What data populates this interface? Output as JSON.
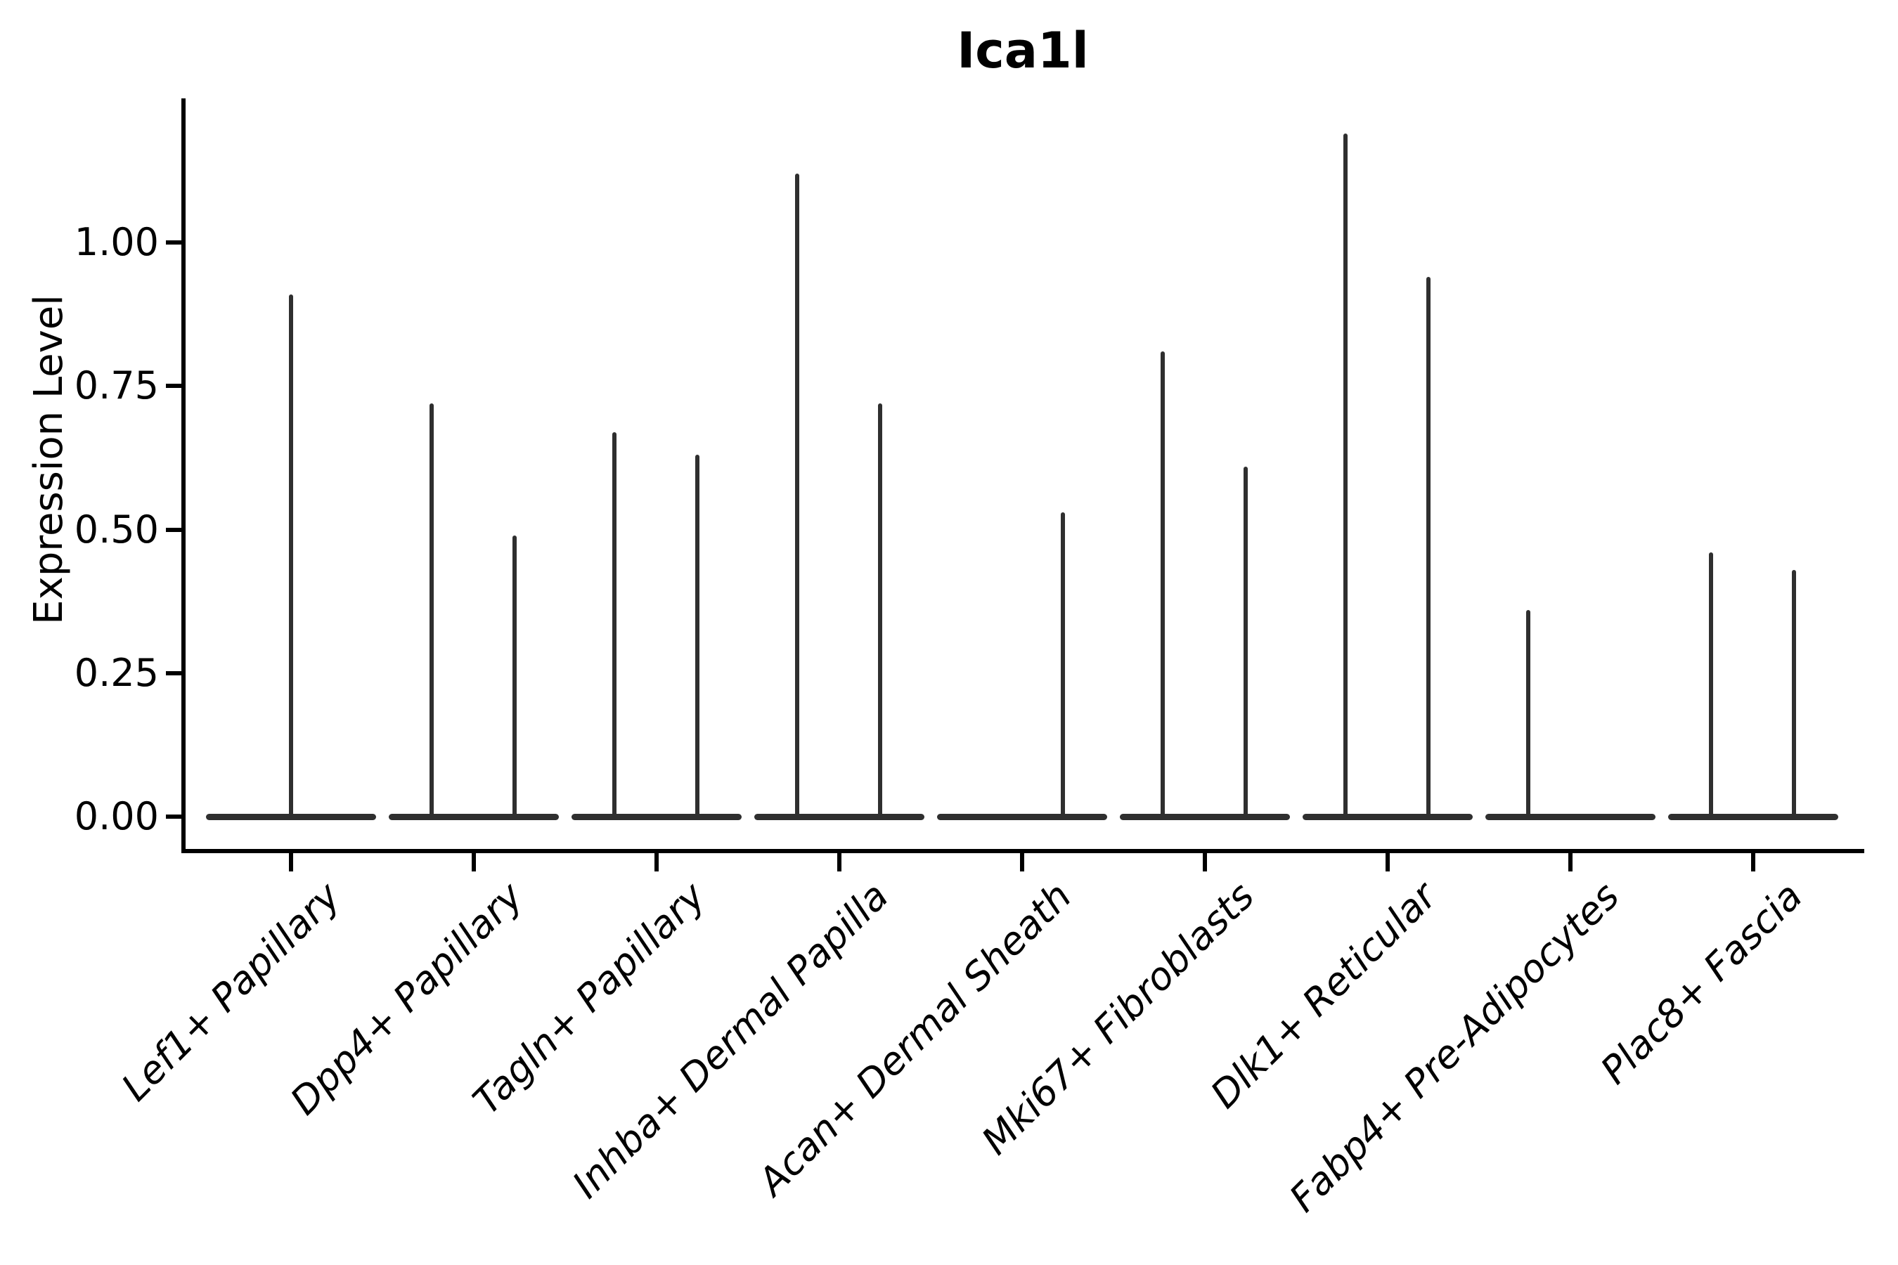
{
  "title": "Ica1l",
  "axes": {
    "ylabel": "Expression Level",
    "ytick_labels": [
      "0.00",
      "0.25",
      "0.50",
      "0.75",
      "1.00"
    ]
  },
  "chart_data": {
    "type": "violin",
    "title": "Ica1l",
    "xlabel": "",
    "ylabel": "Expression Level",
    "ylim": [
      0,
      1.25
    ],
    "yticks": [
      0,
      0.25,
      0.5,
      0.75,
      1.0
    ],
    "ytick_labels": [
      "0.00",
      "0.25",
      "0.50",
      "0.75",
      "1.00"
    ],
    "grid": false,
    "legend": "none",
    "categories": [
      "Lef1+ Papillary",
      "Dpp4+ Papillary",
      "Tagln+ Papillary",
      "Inhba+ Dermal Papilla",
      "Acan+ Dermal Sheath",
      "Mki67+ Fibroblasts",
      "Dlk1+ Reticular",
      "Fabp4+ Pre-Adipocytes",
      "Plac8+ Fascia"
    ],
    "description": "Each category shows violin(s) collapsed to a flat base at expression 0 with thin spikes reaching the maximum expression value.",
    "baseline_value": 0,
    "violins": [
      {
        "category": "Lef1+ Papillary",
        "spikes": [
          {
            "side": "center",
            "max": 0.91
          }
        ]
      },
      {
        "category": "Dpp4+ Papillary",
        "spikes": [
          {
            "side": "left",
            "max": 0.72
          },
          {
            "side": "right",
            "max": 0.49
          }
        ]
      },
      {
        "category": "Tagln+ Papillary",
        "spikes": [
          {
            "side": "left",
            "max": 0.67
          },
          {
            "side": "right",
            "max": 0.63
          }
        ]
      },
      {
        "category": "Inhba+ Dermal Papilla",
        "spikes": [
          {
            "side": "left",
            "max": 1.12
          },
          {
            "side": "right",
            "max": 0.72
          }
        ]
      },
      {
        "category": "Acan+ Dermal Sheath",
        "spikes": [
          {
            "side": "right",
            "max": 0.53
          }
        ]
      },
      {
        "category": "Mki67+ Fibroblasts",
        "spikes": [
          {
            "side": "left",
            "max": 0.81
          },
          {
            "side": "right",
            "max": 0.61
          }
        ]
      },
      {
        "category": "Dlk1+ Reticular",
        "spikes": [
          {
            "side": "left",
            "max": 1.19
          },
          {
            "side": "right",
            "max": 0.94
          }
        ]
      },
      {
        "category": "Fabp4+ Pre-Adipocytes",
        "spikes": [
          {
            "side": "left",
            "max": 0.36
          }
        ]
      },
      {
        "category": "Plac8+ Fascia",
        "spikes": [
          {
            "side": "left",
            "max": 0.46
          },
          {
            "side": "right",
            "max": 0.43
          }
        ]
      }
    ],
    "colors": {
      "violin": "#2f2f2f",
      "axis": "#000000",
      "text": "#000000",
      "background": "#ffffff"
    }
  }
}
